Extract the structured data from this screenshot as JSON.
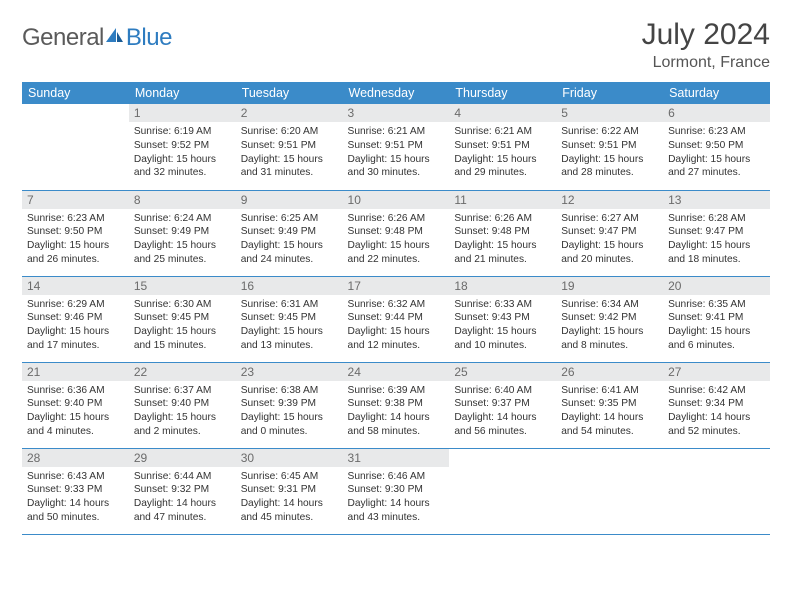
{
  "logo": {
    "text1": "General",
    "text2": "Blue"
  },
  "title": "July 2024",
  "location": "Lormont, France",
  "colors": {
    "header_bg": "#3b8bc9",
    "header_fg": "#ffffff",
    "daynum_bg": "#e8e9ea",
    "daynum_fg": "#6b6b6b",
    "border": "#3b8bc9",
    "logo_gray": "#5a5a5a",
    "logo_blue": "#2e7cc0"
  },
  "weekdays": [
    "Sunday",
    "Monday",
    "Tuesday",
    "Wednesday",
    "Thursday",
    "Friday",
    "Saturday"
  ],
  "weeks": [
    [
      {
        "day": "",
        "lines": [
          "",
          "",
          "",
          ""
        ]
      },
      {
        "day": "1",
        "lines": [
          "Sunrise: 6:19 AM",
          "Sunset: 9:52 PM",
          "Daylight: 15 hours",
          "and 32 minutes."
        ]
      },
      {
        "day": "2",
        "lines": [
          "Sunrise: 6:20 AM",
          "Sunset: 9:51 PM",
          "Daylight: 15 hours",
          "and 31 minutes."
        ]
      },
      {
        "day": "3",
        "lines": [
          "Sunrise: 6:21 AM",
          "Sunset: 9:51 PM",
          "Daylight: 15 hours",
          "and 30 minutes."
        ]
      },
      {
        "day": "4",
        "lines": [
          "Sunrise: 6:21 AM",
          "Sunset: 9:51 PM",
          "Daylight: 15 hours",
          "and 29 minutes."
        ]
      },
      {
        "day": "5",
        "lines": [
          "Sunrise: 6:22 AM",
          "Sunset: 9:51 PM",
          "Daylight: 15 hours",
          "and 28 minutes."
        ]
      },
      {
        "day": "6",
        "lines": [
          "Sunrise: 6:23 AM",
          "Sunset: 9:50 PM",
          "Daylight: 15 hours",
          "and 27 minutes."
        ]
      }
    ],
    [
      {
        "day": "7",
        "lines": [
          "Sunrise: 6:23 AM",
          "Sunset: 9:50 PM",
          "Daylight: 15 hours",
          "and 26 minutes."
        ]
      },
      {
        "day": "8",
        "lines": [
          "Sunrise: 6:24 AM",
          "Sunset: 9:49 PM",
          "Daylight: 15 hours",
          "and 25 minutes."
        ]
      },
      {
        "day": "9",
        "lines": [
          "Sunrise: 6:25 AM",
          "Sunset: 9:49 PM",
          "Daylight: 15 hours",
          "and 24 minutes."
        ]
      },
      {
        "day": "10",
        "lines": [
          "Sunrise: 6:26 AM",
          "Sunset: 9:48 PM",
          "Daylight: 15 hours",
          "and 22 minutes."
        ]
      },
      {
        "day": "11",
        "lines": [
          "Sunrise: 6:26 AM",
          "Sunset: 9:48 PM",
          "Daylight: 15 hours",
          "and 21 minutes."
        ]
      },
      {
        "day": "12",
        "lines": [
          "Sunrise: 6:27 AM",
          "Sunset: 9:47 PM",
          "Daylight: 15 hours",
          "and 20 minutes."
        ]
      },
      {
        "day": "13",
        "lines": [
          "Sunrise: 6:28 AM",
          "Sunset: 9:47 PM",
          "Daylight: 15 hours",
          "and 18 minutes."
        ]
      }
    ],
    [
      {
        "day": "14",
        "lines": [
          "Sunrise: 6:29 AM",
          "Sunset: 9:46 PM",
          "Daylight: 15 hours",
          "and 17 minutes."
        ]
      },
      {
        "day": "15",
        "lines": [
          "Sunrise: 6:30 AM",
          "Sunset: 9:45 PM",
          "Daylight: 15 hours",
          "and 15 minutes."
        ]
      },
      {
        "day": "16",
        "lines": [
          "Sunrise: 6:31 AM",
          "Sunset: 9:45 PM",
          "Daylight: 15 hours",
          "and 13 minutes."
        ]
      },
      {
        "day": "17",
        "lines": [
          "Sunrise: 6:32 AM",
          "Sunset: 9:44 PM",
          "Daylight: 15 hours",
          "and 12 minutes."
        ]
      },
      {
        "day": "18",
        "lines": [
          "Sunrise: 6:33 AM",
          "Sunset: 9:43 PM",
          "Daylight: 15 hours",
          "and 10 minutes."
        ]
      },
      {
        "day": "19",
        "lines": [
          "Sunrise: 6:34 AM",
          "Sunset: 9:42 PM",
          "Daylight: 15 hours",
          "and 8 minutes."
        ]
      },
      {
        "day": "20",
        "lines": [
          "Sunrise: 6:35 AM",
          "Sunset: 9:41 PM",
          "Daylight: 15 hours",
          "and 6 minutes."
        ]
      }
    ],
    [
      {
        "day": "21",
        "lines": [
          "Sunrise: 6:36 AM",
          "Sunset: 9:40 PM",
          "Daylight: 15 hours",
          "and 4 minutes."
        ]
      },
      {
        "day": "22",
        "lines": [
          "Sunrise: 6:37 AM",
          "Sunset: 9:40 PM",
          "Daylight: 15 hours",
          "and 2 minutes."
        ]
      },
      {
        "day": "23",
        "lines": [
          "Sunrise: 6:38 AM",
          "Sunset: 9:39 PM",
          "Daylight: 15 hours",
          "and 0 minutes."
        ]
      },
      {
        "day": "24",
        "lines": [
          "Sunrise: 6:39 AM",
          "Sunset: 9:38 PM",
          "Daylight: 14 hours",
          "and 58 minutes."
        ]
      },
      {
        "day": "25",
        "lines": [
          "Sunrise: 6:40 AM",
          "Sunset: 9:37 PM",
          "Daylight: 14 hours",
          "and 56 minutes."
        ]
      },
      {
        "day": "26",
        "lines": [
          "Sunrise: 6:41 AM",
          "Sunset: 9:35 PM",
          "Daylight: 14 hours",
          "and 54 minutes."
        ]
      },
      {
        "day": "27",
        "lines": [
          "Sunrise: 6:42 AM",
          "Sunset: 9:34 PM",
          "Daylight: 14 hours",
          "and 52 minutes."
        ]
      }
    ],
    [
      {
        "day": "28",
        "lines": [
          "Sunrise: 6:43 AM",
          "Sunset: 9:33 PM",
          "Daylight: 14 hours",
          "and 50 minutes."
        ]
      },
      {
        "day": "29",
        "lines": [
          "Sunrise: 6:44 AM",
          "Sunset: 9:32 PM",
          "Daylight: 14 hours",
          "and 47 minutes."
        ]
      },
      {
        "day": "30",
        "lines": [
          "Sunrise: 6:45 AM",
          "Sunset: 9:31 PM",
          "Daylight: 14 hours",
          "and 45 minutes."
        ]
      },
      {
        "day": "31",
        "lines": [
          "Sunrise: 6:46 AM",
          "Sunset: 9:30 PM",
          "Daylight: 14 hours",
          "and 43 minutes."
        ]
      },
      {
        "day": "",
        "lines": [
          "",
          "",
          "",
          ""
        ]
      },
      {
        "day": "",
        "lines": [
          "",
          "",
          "",
          ""
        ]
      },
      {
        "day": "",
        "lines": [
          "",
          "",
          "",
          ""
        ]
      }
    ]
  ]
}
